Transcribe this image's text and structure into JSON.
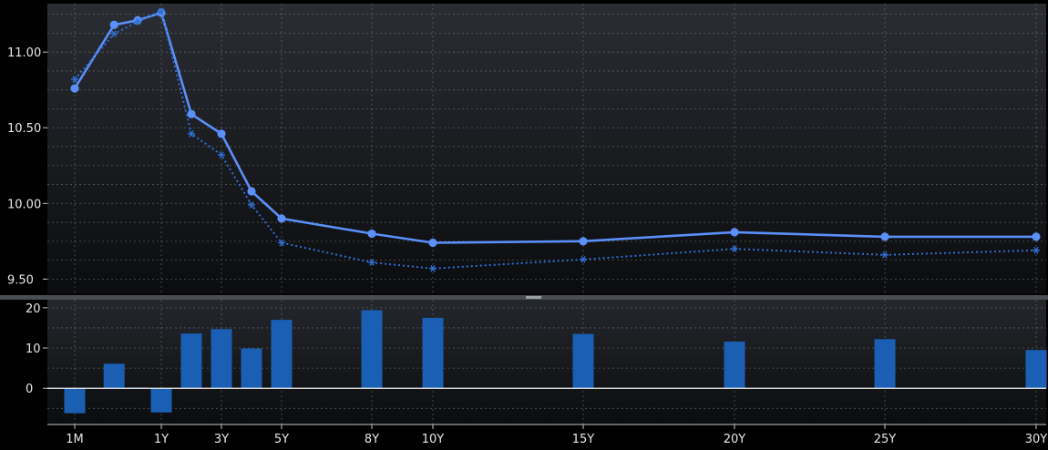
{
  "chart_data": [
    {
      "type": "line",
      "title": "",
      "xlabel": "",
      "ylabel": "",
      "grid": true,
      "ylim": [
        9.4,
        11.32
      ],
      "y_ticks": [
        "9.50",
        "10.00",
        "10.50",
        "11.00"
      ],
      "x_ticks": [
        "1M",
        "1Y",
        "3Y",
        "5Y",
        "8Y",
        "10Y",
        "15Y",
        "20Y",
        "25Y",
        "30Y"
      ],
      "x": [
        0.083,
        0.5,
        0.75,
        1,
        2,
        3,
        4,
        5,
        8,
        10,
        15,
        20,
        25,
        30
      ],
      "series": [
        {
          "style": "solid-dot",
          "color": "#5b8ff9",
          "values": [
            10.76,
            11.18,
            11.21,
            11.26,
            10.59,
            10.46,
            10.08,
            9.9,
            9.8,
            9.74,
            9.75,
            9.81,
            9.78,
            9.78
          ]
        },
        {
          "style": "dotted-star",
          "color": "#2f6fd6",
          "values": [
            10.82,
            11.12,
            11.2,
            11.27,
            10.46,
            10.32,
            9.99,
            9.74,
            9.61,
            9.57,
            9.63,
            9.7,
            9.66,
            9.69
          ]
        }
      ]
    },
    {
      "type": "bar",
      "title": "",
      "xlabel": "",
      "ylabel": "",
      "grid": true,
      "ylim": [
        -9,
        22
      ],
      "y_ticks": [
        "0",
        "10",
        "20"
      ],
      "x_ticks": [
        "1M",
        "1Y",
        "3Y",
        "5Y",
        "8Y",
        "10Y",
        "15Y",
        "20Y",
        "25Y",
        "30Y"
      ],
      "x": [
        0.083,
        0.5,
        0.75,
        1,
        2,
        3,
        4,
        5,
        8,
        10,
        15,
        20,
        25,
        30
      ],
      "values": [
        -6.2,
        6.1,
        0.2,
        -6.0,
        13.6,
        14.7,
        9.9,
        17.0,
        19.4,
        17.5,
        13.5,
        11.6,
        12.2,
        9.5
      ],
      "color": "#1a5fb4"
    }
  ]
}
